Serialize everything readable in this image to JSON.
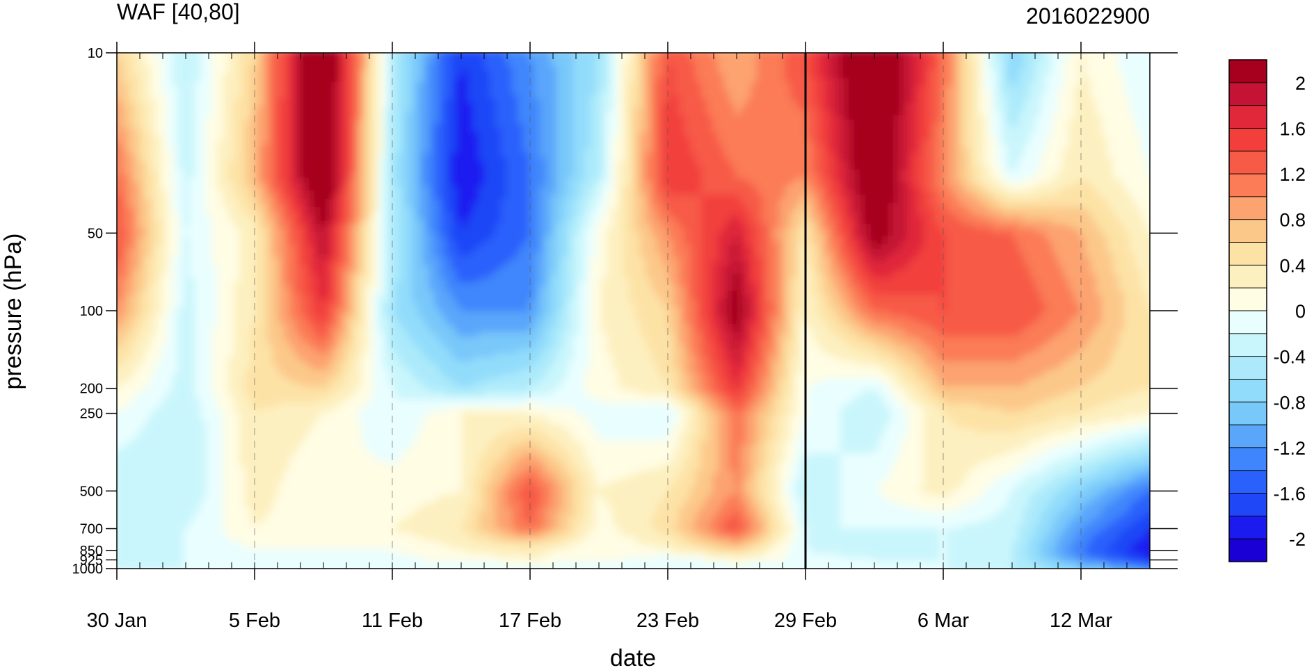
{
  "chart_data": {
    "type": "heatmap",
    "title": "WAF [40,80]",
    "subtitle": "2016022900",
    "xlabel": "date",
    "ylabel": "pressure (hPa)",
    "x_ticks": [
      {
        "date": "2016-01-30",
        "label": "30 Jan"
      },
      {
        "date": "2016-02-05",
        "label": "5 Feb"
      },
      {
        "date": "2016-02-11",
        "label": "11 Feb"
      },
      {
        "date": "2016-02-17",
        "label": "17 Feb"
      },
      {
        "date": "2016-02-23",
        "label": "23 Feb"
      },
      {
        "date": "2016-02-29",
        "label": "29 Feb"
      },
      {
        "date": "2016-03-06",
        "label": "6 Mar"
      },
      {
        "date": "2016-03-12",
        "label": "12 Mar"
      }
    ],
    "x_range": [
      "2016-01-30",
      "2016-03-15"
    ],
    "y_scale": "log",
    "y_reversed": true,
    "y_range": [
      1000,
      10
    ],
    "y_ticks": [
      {
        "value": 10,
        "label": "10"
      },
      {
        "value": 50,
        "label": "50"
      },
      {
        "value": 100,
        "label": "100"
      },
      {
        "value": 200,
        "label": "200"
      },
      {
        "value": 250,
        "label": "250"
      },
      {
        "value": 500,
        "label": "500"
      },
      {
        "value": 700,
        "label": "700"
      },
      {
        "value": 850,
        "label": "850"
      },
      {
        "value": 925,
        "label": "925"
      },
      {
        "value": 1000,
        "label": "1000"
      }
    ],
    "vertical_marker": "2016-02-29",
    "colorbar": {
      "levels": [
        -2.2,
        -2.0,
        -1.8,
        -1.6,
        -1.4,
        -1.2,
        -1.0,
        -0.8,
        -0.6,
        -0.4,
        -0.2,
        0.0,
        0.2,
        0.4,
        0.6,
        0.8,
        1.0,
        1.2,
        1.4,
        1.6,
        1.8,
        2.0,
        2.2
      ],
      "colors": [
        "#1a00d5",
        "#1b1bf0",
        "#1f46f7",
        "#2b61fb",
        "#3f86fc",
        "#5aa6fb",
        "#79c8fa",
        "#92dcfb",
        "#aceafb",
        "#c9f6fc",
        "#e9feff",
        "#fffde4",
        "#fdf0c0",
        "#fde2a6",
        "#fcc88a",
        "#fca36f",
        "#fb7c56",
        "#f75a47",
        "#f23f3c",
        "#e0283a",
        "#c51335",
        "#a6001e"
      ],
      "labels": [
        {
          "value": 2,
          "label": "2"
        },
        {
          "value": 1.6,
          "label": "1.6"
        },
        {
          "value": 1.2,
          "label": "1.2"
        },
        {
          "value": 0.8,
          "label": "0.8"
        },
        {
          "value": 0.4,
          "label": "0.4"
        },
        {
          "value": 0,
          "label": "0"
        },
        {
          "value": -0.4,
          "label": "-0.4"
        },
        {
          "value": -0.8,
          "label": "-0.8"
        },
        {
          "value": -1.2,
          "label": "-1.2"
        },
        {
          "value": -1.6,
          "label": "-1.6"
        },
        {
          "value": -2,
          "label": "-2"
        }
      ]
    },
    "field": {
      "dates": [
        "2016-01-30",
        "2016-02-02",
        "2016-02-05",
        "2016-02-08",
        "2016-02-11",
        "2016-02-14",
        "2016-02-17",
        "2016-02-20",
        "2016-02-23",
        "2016-02-26",
        "2016-02-29",
        "2016-03-03",
        "2016-03-06",
        "2016-03-09",
        "2016-03-12",
        "2016-03-15"
      ],
      "pressure": [
        10,
        30,
        50,
        100,
        200,
        250,
        500,
        700,
        850,
        925,
        1000
      ],
      "values": [
        [
          0.6,
          -0.4,
          0.6,
          2.6,
          -0.4,
          -1.8,
          -1.2,
          -0.6,
          1.4,
          0.8,
          1.4,
          2.6,
          1.2,
          -0.8,
          0.2,
          -0.2
        ],
        [
          1.2,
          -0.3,
          0.8,
          2.5,
          -0.5,
          -2.0,
          -1.4,
          -0.4,
          1.6,
          1.2,
          1.0,
          2.4,
          1.0,
          -0.2,
          0.4,
          0.0
        ],
        [
          1.4,
          -0.2,
          0.3,
          2.0,
          -0.4,
          -1.8,
          -1.4,
          0.1,
          1.0,
          1.8,
          0.4,
          2.2,
          1.4,
          1.2,
          0.8,
          0.2
        ],
        [
          1.0,
          -0.3,
          0.4,
          1.6,
          -0.6,
          -1.2,
          -1.2,
          0.2,
          0.6,
          2.2,
          0.2,
          1.2,
          1.4,
          1.4,
          1.0,
          0.4
        ],
        [
          0.2,
          -0.3,
          0.5,
          0.6,
          -0.2,
          -0.6,
          -0.4,
          0.1,
          0.4,
          1.6,
          0.0,
          -0.2,
          0.8,
          0.8,
          0.6,
          0.4
        ],
        [
          0.0,
          -0.4,
          0.4,
          0.2,
          -0.2,
          0.2,
          0.2,
          -0.1,
          -0.2,
          1.2,
          0.0,
          -0.4,
          0.4,
          0.6,
          0.4,
          0.2
        ],
        [
          -0.4,
          -0.4,
          0.3,
          0.0,
          0.1,
          0.2,
          1.4,
          0.2,
          0.4,
          1.0,
          -0.4,
          0.0,
          0.3,
          -0.2,
          -0.8,
          -1.4
        ],
        [
          -0.2,
          -0.2,
          0.2,
          0.1,
          0.2,
          0.4,
          1.2,
          0.1,
          0.5,
          1.4,
          -0.2,
          -0.2,
          -0.2,
          -0.3,
          -1.2,
          -1.8
        ],
        [
          -0.3,
          -0.2,
          0.0,
          0.0,
          0.0,
          0.2,
          0.3,
          0.0,
          0.2,
          0.6,
          -0.2,
          -0.3,
          -0.2,
          -0.4,
          -1.4,
          -2.0
        ],
        [
          -0.4,
          -0.2,
          -0.2,
          -0.2,
          -0.1,
          0.1,
          0.2,
          0.1,
          -0.2,
          0.2,
          -0.1,
          -0.2,
          -0.2,
          -0.4,
          -1.2,
          -1.8
        ],
        [
          -0.2,
          -0.2,
          -0.2,
          -0.2,
          -0.2,
          -0.2,
          -0.2,
          -0.2,
          -0.2,
          -0.2,
          -0.2,
          -0.2,
          -0.2,
          -0.4,
          -0.8,
          -1.2
        ]
      ]
    }
  }
}
